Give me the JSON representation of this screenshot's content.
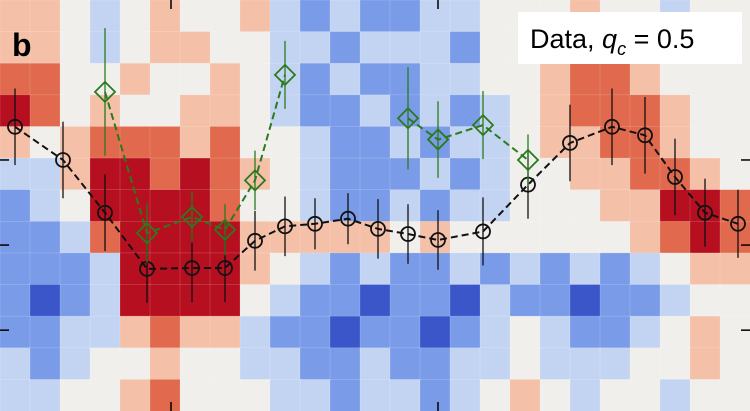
{
  "chart_data": {
    "type": "heatmap_errorbar",
    "panel_label": "b",
    "legend": {
      "prefix": "Data, ",
      "symbol": "q",
      "subscript": "c",
      "suffix": " = 0.5"
    },
    "xlim": [
      0,
      25
    ],
    "ylim": [
      0.05,
      4.88
    ],
    "xticks": [
      5.7,
      14.6
    ],
    "yticks": [
      1,
      2,
      3
    ],
    "heatmap": {
      "colormap": [
        "#3a56c9",
        "#7a9ce8",
        "#c3d4f2",
        "#f1efec",
        "#f5c0a8",
        "#e0694e",
        "#b60f1f"
      ],
      "vmin": -3,
      "vmax": 3,
      "values": [
        [
          1,
          1,
          0,
          -1,
          0,
          1,
          0,
          0,
          1,
          -1,
          -2,
          -1,
          -2,
          -2,
          -1,
          -1,
          0,
          0,
          0,
          1,
          0,
          0,
          -1,
          0,
          0
        ],
        [
          1,
          1,
          0,
          -1,
          0,
          1,
          1,
          0,
          0,
          -1,
          -1,
          -2,
          -1,
          -1,
          -1,
          -2,
          0,
          0,
          1,
          1,
          0,
          0,
          0,
          0,
          0
        ],
        [
          2,
          2,
          0,
          0,
          1,
          0,
          0,
          1,
          0,
          -1,
          -2,
          -1,
          -2,
          -2,
          -1,
          -1,
          0,
          0,
          1,
          2,
          2,
          1,
          0,
          0,
          0
        ],
        [
          3,
          2,
          0,
          1,
          0,
          0,
          1,
          1,
          0,
          -1,
          -2,
          -2,
          -1,
          -2,
          -1,
          -2,
          -1,
          0,
          1,
          2,
          2,
          2,
          1,
          0,
          0
        ],
        [
          1,
          0,
          1,
          2,
          2,
          2,
          1,
          2,
          0,
          0,
          -1,
          -2,
          -2,
          -1,
          -2,
          -1,
          -1,
          0,
          1,
          1,
          2,
          2,
          1,
          0,
          0
        ],
        [
          -1,
          -1,
          1,
          3,
          3,
          2,
          3,
          2,
          1,
          0,
          -1,
          -2,
          -2,
          -2,
          -1,
          -2,
          -1,
          0,
          0,
          1,
          1,
          2,
          2,
          1,
          0
        ],
        [
          -2,
          -1,
          0,
          3,
          3,
          3,
          3,
          2,
          0,
          0,
          -1,
          -2,
          -2,
          -1,
          -2,
          -1,
          -1,
          0,
          0,
          0,
          1,
          1,
          3,
          3,
          2
        ],
        [
          -2,
          -2,
          -1,
          2,
          3,
          3,
          3,
          3,
          1,
          1,
          1,
          1,
          1,
          0,
          1,
          0,
          0,
          0,
          0,
          0,
          0,
          1,
          2,
          3,
          2
        ],
        [
          -2,
          -2,
          -2,
          -1,
          3,
          3,
          3,
          3,
          1,
          0,
          -1,
          -2,
          -1,
          -2,
          -2,
          -1,
          -2,
          -1,
          -2,
          -1,
          -2,
          -1,
          0,
          1,
          1
        ],
        [
          -2,
          -3,
          -2,
          -1,
          3,
          3,
          3,
          3,
          0,
          -1,
          -2,
          -2,
          -3,
          -2,
          -2,
          -3,
          -1,
          -2,
          -2,
          -3,
          -2,
          -2,
          -1,
          0,
          0
        ],
        [
          -2,
          -2,
          -1,
          -1,
          1,
          2,
          1,
          1,
          -1,
          -2,
          -2,
          -3,
          -2,
          -2,
          -3,
          -2,
          -1,
          0,
          -1,
          -2,
          -2,
          -1,
          0,
          1,
          0
        ],
        [
          -1,
          -2,
          -1,
          0,
          0,
          1,
          0,
          0,
          -1,
          -1,
          -2,
          -2,
          -1,
          -2,
          -2,
          -1,
          -1,
          0,
          -1,
          -1,
          -1,
          0,
          0,
          1,
          0
        ],
        [
          -1,
          -1,
          0,
          0,
          1,
          2,
          0,
          0,
          0,
          -1,
          -1,
          -2,
          -1,
          -1,
          -2,
          -1,
          0,
          1,
          0,
          -1,
          0,
          0,
          -1,
          0,
          0
        ]
      ]
    },
    "x": [
      0.5,
      2.1,
      3.5,
      4.9,
      6.4,
      7.5,
      8.5,
      9.5,
      10.5,
      11.6,
      12.6,
      13.6,
      14.6,
      16.1,
      17.6,
      19.0,
      20.4,
      21.5,
      22.5,
      23.5,
      24.6
    ],
    "series": [
      {
        "color": "#111111",
        "marker": "circle",
        "values": [
          3.39,
          3.0,
          2.38,
          1.72,
          1.73,
          1.73,
          2.05,
          2.22,
          2.25,
          2.31,
          2.19,
          2.13,
          2.06,
          2.16,
          2.71,
          3.2,
          3.39,
          3.29,
          2.8,
          2.38,
          2.25
        ],
        "errors": [
          0.45,
          0.45,
          0.45,
          0.4,
          0.4,
          0.4,
          0.35,
          0.35,
          0.3,
          0.3,
          0.35,
          0.35,
          0.35,
          0.4,
          0.4,
          0.45,
          0.45,
          0.45,
          0.45,
          0.4,
          0.4
        ]
      },
      {
        "color": "#2a7a1e",
        "marker": "diamond",
        "values": [
          null,
          null,
          3.8,
          2.14,
          2.33,
          2.18,
          2.76,
          4.0,
          null,
          null,
          null,
          3.49,
          3.24,
          3.41,
          3.0,
          null,
          null,
          null,
          null,
          null,
          null
        ],
        "errors": [
          null,
          null,
          0.75,
          0.35,
          0.3,
          0.3,
          0.35,
          0.4,
          null,
          null,
          null,
          0.6,
          0.45,
          0.4,
          0.3,
          null,
          null,
          null,
          null,
          null,
          null
        ]
      }
    ]
  }
}
